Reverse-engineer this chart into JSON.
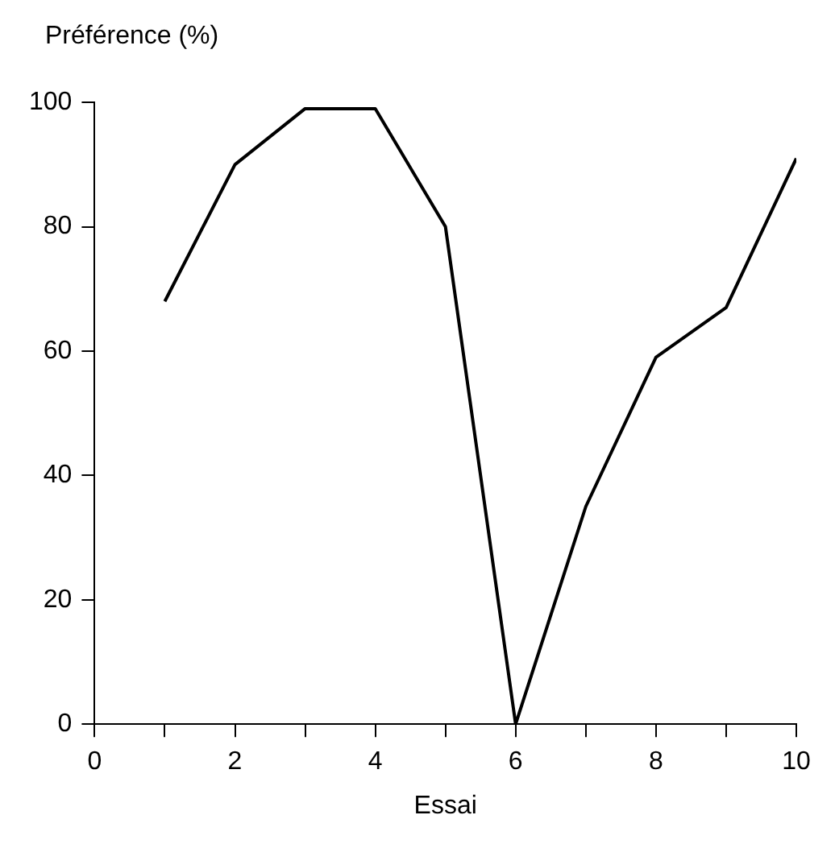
{
  "chart_data": {
    "type": "line",
    "xlabel": "Essai",
    "ylabel": "Préférence (%)",
    "x": [
      1,
      2,
      3,
      4,
      5,
      6,
      7,
      8,
      9,
      10
    ],
    "series": [
      {
        "color": "#000000",
        "values": [
          68,
          90,
          99,
          99,
          80,
          0,
          35,
          59,
          67,
          91
        ]
      }
    ],
    "xlim": [
      0,
      10
    ],
    "xticks": [
      0,
      {
        "value": 1,
        "label": null
      },
      2,
      {
        "value": 3,
        "label": null
      },
      4,
      {
        "value": 5,
        "label": null
      },
      6,
      {
        "value": 7,
        "label": null
      },
      8,
      {
        "value": 9,
        "label": null
      },
      10
    ],
    "ylim": [
      0,
      100
    ],
    "yticks": [
      0,
      20,
      40,
      60,
      80,
      100
    ],
    "grid": false,
    "legend": false,
    "marker": "none",
    "line_style": "solid"
  }
}
